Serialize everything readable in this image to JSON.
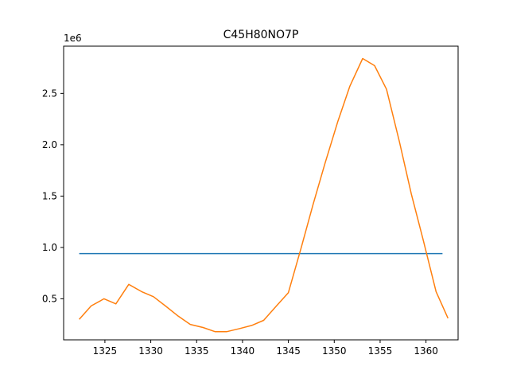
{
  "chart_data": {
    "type": "line",
    "title": "C45H80NO7P",
    "xlabel": "",
    "ylabel": "",
    "y_offset_label": "1e6",
    "xlim": [
      1320.5,
      1363.5
    ],
    "ylim": [
      100000,
      2960000
    ],
    "xticks": [
      1325,
      1330,
      1335,
      1340,
      1345,
      1350,
      1355,
      1360
    ],
    "yticks": [
      500000,
      1000000,
      1500000,
      2000000,
      2500000
    ],
    "ytick_labels": [
      "0.5",
      "1.0",
      "1.5",
      "2.0",
      "2.5"
    ],
    "grid": false,
    "series": [
      {
        "color": "#1f77b4",
        "x": [
          1322.2,
          1361.8
        ],
        "y": [
          940000,
          940000
        ]
      },
      {
        "color": "#ff7f0e",
        "x": [
          1322.2,
          1323.5,
          1324.9,
          1326.2,
          1327.6,
          1329.0,
          1330.3,
          1331.6,
          1333.0,
          1334.3,
          1335.7,
          1337.0,
          1338.3,
          1339.7,
          1341.0,
          1342.3,
          1343.7,
          1345.0,
          1346.4,
          1347.7,
          1349.0,
          1350.4,
          1351.7,
          1353.1,
          1354.4,
          1355.7,
          1357.1,
          1358.4,
          1359.7,
          1361.1,
          1362.4
        ],
        "y": [
          300000,
          430000,
          500000,
          450000,
          640000,
          570000,
          520000,
          430000,
          330000,
          250000,
          220000,
          180000,
          180000,
          210000,
          240000,
          290000,
          430000,
          560000,
          1000000,
          1420000,
          1820000,
          2230000,
          2570000,
          2840000,
          2770000,
          2540000,
          2030000,
          1520000,
          1070000,
          570000,
          310000
        ]
      }
    ]
  }
}
